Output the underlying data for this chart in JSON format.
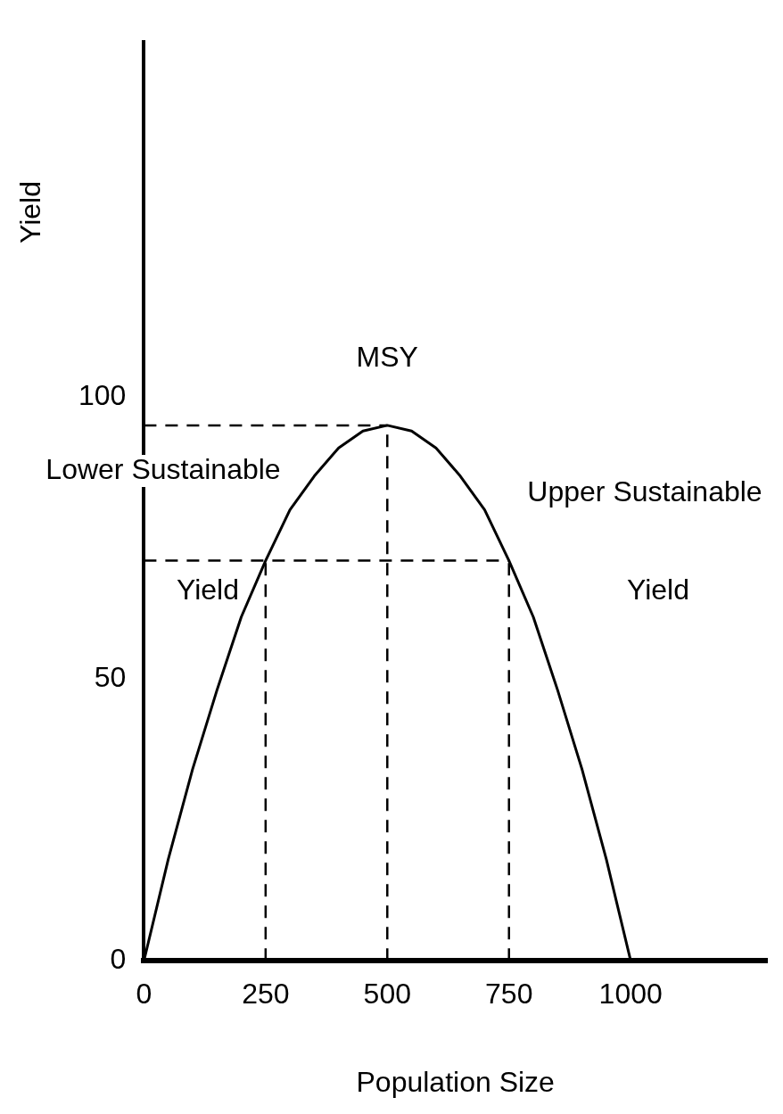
{
  "chart_data": {
    "type": "line",
    "xlabel": "Population Size",
    "ylabel": "Yield",
    "xlim": [
      0,
      1280
    ],
    "ylim": [
      0,
      163
    ],
    "xticks": [
      0,
      250,
      500,
      750,
      1000
    ],
    "yticks": [
      0,
      50,
      100
    ],
    "grid": false,
    "legend": false,
    "marker": "none",
    "series": [
      {
        "color": "#000000",
        "x": [
          0,
          50,
          100,
          150,
          200,
          250,
          300,
          350,
          400,
          450,
          500,
          550,
          600,
          650,
          700,
          750,
          800,
          850,
          900,
          950,
          1000
        ],
        "values": [
          0,
          18,
          34,
          48,
          61,
          71,
          80,
          86,
          91,
          94,
          95,
          94,
          91,
          86,
          80,
          71,
          61,
          48,
          34,
          18,
          0
        ],
        "line_style": "solid"
      },
      {
        "color": "#000000",
        "type": "line",
        "x": [
          0,
          500
        ],
        "values": [
          95,
          95
        ],
        "line_style": "dashed"
      },
      {
        "color": "#000000",
        "type": "line",
        "x": [
          0,
          750
        ],
        "values": [
          71,
          71
        ],
        "line_style": "dashed"
      },
      {
        "color": "#000000",
        "type": "line",
        "x": [
          250,
          250
        ],
        "values": [
          0,
          71
        ],
        "line_style": "dashed"
      },
      {
        "color": "#000000",
        "type": "line",
        "x": [
          500,
          500
        ],
        "values": [
          0,
          95
        ],
        "line_style": "dashed"
      },
      {
        "color": "#000000",
        "type": "line",
        "x": [
          750,
          750
        ],
        "values": [
          0,
          71
        ],
        "line_style": "dashed"
      }
    ],
    "annotations": [
      {
        "text": "MSY",
        "x": 500,
        "y": 95
      },
      "Lower Sustainable",
      "Yield",
      "Upper Sustainable",
      "Yield"
    ]
  }
}
